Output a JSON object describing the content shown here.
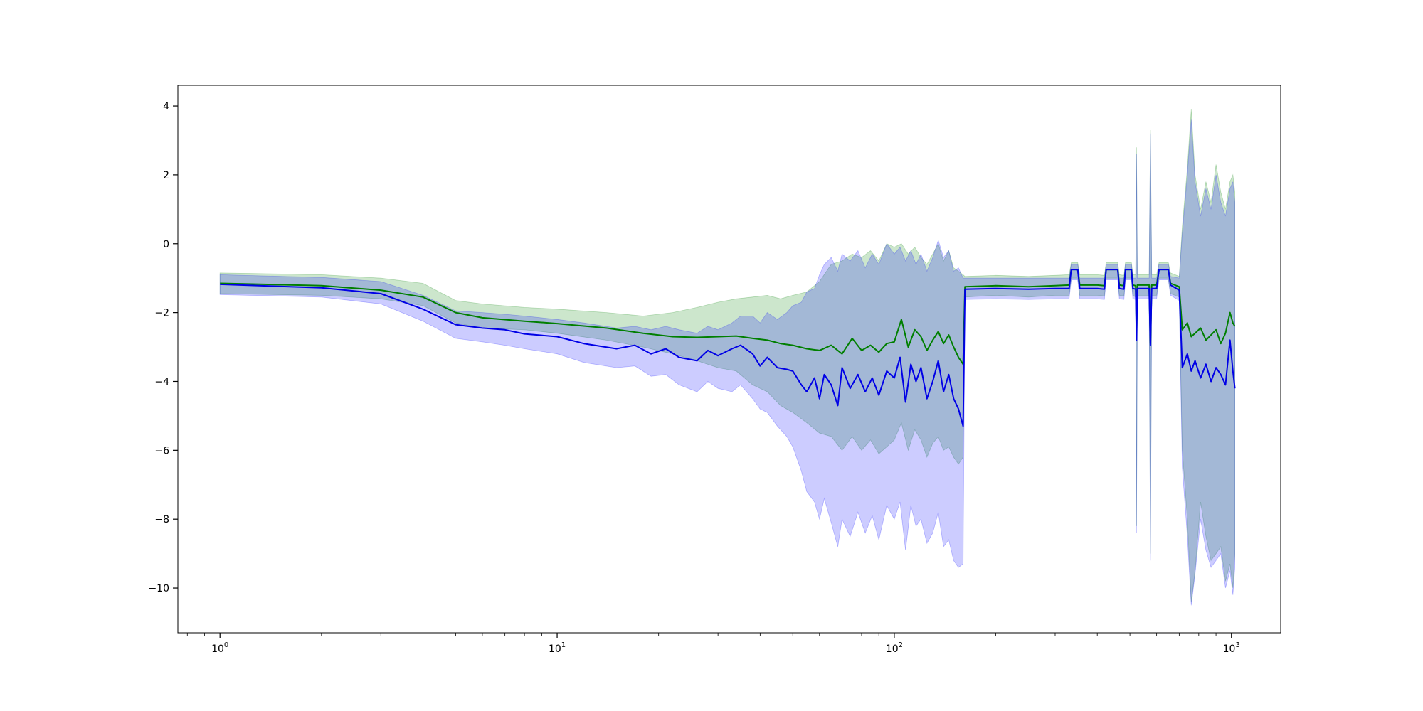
{
  "chart_data": {
    "type": "line",
    "title": "",
    "xlabel": "",
    "ylabel": "",
    "xscale": "log",
    "xlim": [
      0.75,
      1400
    ],
    "ylim": [
      -11.3,
      4.6
    ],
    "grid": false,
    "legend": "none",
    "x_ticks": [
      {
        "value": 1,
        "base": "10",
        "exp": "0"
      },
      {
        "value": 10,
        "base": "10",
        "exp": "1"
      },
      {
        "value": 100,
        "base": "10",
        "exp": "2"
      },
      {
        "value": 1000,
        "base": "10",
        "exp": "3"
      }
    ],
    "y_ticks": [
      {
        "value": 4,
        "label": "4"
      },
      {
        "value": 2,
        "label": "2"
      },
      {
        "value": 0,
        "label": "0"
      },
      {
        "value": -2,
        "label": "−2"
      },
      {
        "value": -4,
        "label": "−4"
      },
      {
        "value": -6,
        "label": "−6"
      },
      {
        "value": -8,
        "label": "−8"
      },
      {
        "value": -10,
        "label": "−10"
      }
    ],
    "series": [
      {
        "color": "#007f00",
        "band_color": "#008000",
        "band_opacity": 0.2,
        "points": [
          [
            1,
            -1.15,
            -0.85,
            -1.45
          ],
          [
            2,
            -1.22,
            -0.9,
            -1.5
          ],
          [
            3,
            -1.35,
            -1.0,
            -1.6
          ],
          [
            4,
            -1.55,
            -1.15,
            -1.8
          ],
          [
            5,
            -2.0,
            -1.65,
            -2.3
          ],
          [
            6,
            -2.15,
            -1.75,
            -2.45
          ],
          [
            8,
            -2.25,
            -1.85,
            -2.5
          ],
          [
            10,
            -2.32,
            -1.9,
            -2.6
          ],
          [
            14,
            -2.45,
            -2.0,
            -2.8
          ],
          [
            18,
            -2.6,
            -2.1,
            -3.0
          ],
          [
            22,
            -2.7,
            -2.0,
            -3.2
          ],
          [
            26,
            -2.72,
            -1.85,
            -3.4
          ],
          [
            30,
            -2.7,
            -1.7,
            -3.6
          ],
          [
            34,
            -2.68,
            -1.6,
            -3.7
          ],
          [
            38,
            -2.75,
            -1.55,
            -4.1
          ],
          [
            42,
            -2.8,
            -1.5,
            -4.3
          ],
          [
            46,
            -2.9,
            -1.6,
            -4.7
          ],
          [
            50,
            -2.95,
            -1.5,
            -4.9
          ],
          [
            55,
            -3.05,
            -1.4,
            -5.2
          ],
          [
            60,
            -3.1,
            -1.1,
            -5.5
          ],
          [
            65,
            -2.95,
            -0.6,
            -5.6
          ],
          [
            70,
            -3.2,
            -0.5,
            -6.0
          ],
          [
            75,
            -2.75,
            -0.3,
            -5.6
          ],
          [
            80,
            -3.1,
            -0.4,
            -6.0
          ],
          [
            85,
            -2.95,
            -0.2,
            -5.7
          ],
          [
            90,
            -3.15,
            -0.5,
            -6.1
          ],
          [
            95,
            -2.9,
            0.0,
            -5.9
          ],
          [
            100,
            -2.85,
            -0.1,
            -5.7
          ],
          [
            105,
            -2.2,
            0.0,
            -5.2
          ],
          [
            110,
            -3.0,
            -0.3,
            -6.0
          ],
          [
            115,
            -2.5,
            -0.1,
            -5.4
          ],
          [
            120,
            -2.7,
            -0.4,
            -5.7
          ],
          [
            125,
            -3.1,
            -0.6,
            -6.2
          ],
          [
            130,
            -2.8,
            -0.3,
            -5.8
          ],
          [
            135,
            -2.55,
            0.0,
            -5.6
          ],
          [
            140,
            -2.9,
            -0.5,
            -6.0
          ],
          [
            145,
            -2.65,
            -0.2,
            -5.9
          ],
          [
            150,
            -3.0,
            -0.7,
            -6.2
          ],
          [
            155,
            -3.3,
            -0.8,
            -6.4
          ],
          [
            160,
            -3.5,
            -0.9,
            -6.2
          ],
          [
            162,
            -1.25,
            -0.95,
            -1.55
          ],
          [
            200,
            -1.22,
            -0.92,
            -1.5
          ],
          [
            250,
            -1.25,
            -0.95,
            -1.55
          ],
          [
            300,
            -1.22,
            -0.92,
            -1.5
          ],
          [
            330,
            -1.2,
            -0.9,
            -1.5
          ],
          [
            335,
            -0.75,
            -0.55,
            -1.0
          ],
          [
            350,
            -0.75,
            -0.55,
            -1.0
          ],
          [
            355,
            -1.2,
            -0.9,
            -1.5
          ],
          [
            400,
            -1.2,
            -0.9,
            -1.5
          ],
          [
            420,
            -1.22,
            -0.92,
            -1.52
          ],
          [
            425,
            -0.75,
            -0.55,
            -1.0
          ],
          [
            460,
            -0.75,
            -0.55,
            -1.0
          ],
          [
            465,
            -1.2,
            -0.9,
            -1.5
          ],
          [
            480,
            -1.22,
            -0.92,
            -1.52
          ],
          [
            485,
            -0.75,
            -0.55,
            -1.0
          ],
          [
            505,
            -0.75,
            -0.55,
            -1.0
          ],
          [
            510,
            -1.2,
            -0.9,
            -1.5
          ],
          [
            520,
            -1.22,
            -0.9,
            -1.55
          ],
          [
            523,
            -2.6,
            2.8,
            -8.2
          ],
          [
            526,
            -1.2,
            -0.9,
            -1.5
          ],
          [
            570,
            -1.2,
            -0.9,
            -1.5
          ],
          [
            575,
            -2.9,
            3.3,
            -9.0
          ],
          [
            580,
            -1.2,
            -0.9,
            -1.5
          ],
          [
            600,
            -1.2,
            -0.9,
            -1.5
          ],
          [
            610,
            -0.75,
            -0.55,
            -1.0
          ],
          [
            650,
            -0.75,
            -0.55,
            -1.0
          ],
          [
            660,
            -1.15,
            -0.85,
            -1.45
          ],
          [
            700,
            -1.25,
            -0.95,
            -1.55
          ],
          [
            715,
            -2.5,
            0.5,
            -6.0
          ],
          [
            740,
            -2.3,
            2.2,
            -8.0
          ],
          [
            760,
            -2.7,
            3.9,
            -10.4
          ],
          [
            780,
            -2.6,
            2.0,
            -9.5
          ],
          [
            810,
            -2.45,
            1.0,
            -7.5
          ],
          [
            840,
            -2.8,
            1.8,
            -8.5
          ],
          [
            870,
            -2.65,
            1.2,
            -9.2
          ],
          [
            900,
            -2.5,
            2.3,
            -9.0
          ],
          [
            930,
            -2.9,
            1.5,
            -8.8
          ],
          [
            960,
            -2.6,
            1.0,
            -9.8
          ],
          [
            990,
            -2.0,
            1.8,
            -9.3
          ],
          [
            1010,
            -2.3,
            2.0,
            -10.0
          ],
          [
            1024,
            -2.4,
            1.5,
            -9.0
          ]
        ]
      },
      {
        "color": "#0000e6",
        "band_color": "#0000ff",
        "band_opacity": 0.2,
        "points": [
          [
            1,
            -1.18,
            -0.9,
            -1.48
          ],
          [
            2,
            -1.28,
            -0.98,
            -1.55
          ],
          [
            3,
            -1.45,
            -1.1,
            -1.75
          ],
          [
            4,
            -1.9,
            -1.5,
            -2.25
          ],
          [
            5,
            -2.35,
            -1.95,
            -2.75
          ],
          [
            6,
            -2.45,
            -2.0,
            -2.85
          ],
          [
            7,
            -2.5,
            -2.05,
            -2.95
          ],
          [
            8,
            -2.62,
            -2.1,
            -3.05
          ],
          [
            10,
            -2.7,
            -2.2,
            -3.2
          ],
          [
            12,
            -2.9,
            -2.3,
            -3.45
          ],
          [
            15,
            -3.05,
            -2.45,
            -3.6
          ],
          [
            17,
            -2.95,
            -2.4,
            -3.55
          ],
          [
            19,
            -3.2,
            -2.5,
            -3.85
          ],
          [
            21,
            -3.05,
            -2.4,
            -3.8
          ],
          [
            23,
            -3.3,
            -2.5,
            -4.1
          ],
          [
            26,
            -3.4,
            -2.6,
            -4.3
          ],
          [
            28,
            -3.1,
            -2.4,
            -4.0
          ],
          [
            30,
            -3.25,
            -2.5,
            -4.2
          ],
          [
            33,
            -3.05,
            -2.3,
            -4.3
          ],
          [
            35,
            -2.95,
            -2.1,
            -4.1
          ],
          [
            38,
            -3.2,
            -2.1,
            -4.5
          ],
          [
            40,
            -3.55,
            -2.3,
            -4.8
          ],
          [
            42,
            -3.3,
            -2.0,
            -4.9
          ],
          [
            45,
            -3.6,
            -2.2,
            -5.3
          ],
          [
            48,
            -3.65,
            -2.0,
            -5.6
          ],
          [
            50,
            -3.7,
            -1.8,
            -5.9
          ],
          [
            53,
            -4.1,
            -1.7,
            -6.6
          ],
          [
            55,
            -4.3,
            -1.4,
            -7.2
          ],
          [
            58,
            -3.9,
            -1.3,
            -7.5
          ],
          [
            60,
            -4.5,
            -0.9,
            -8.0
          ],
          [
            62,
            -3.8,
            -0.6,
            -7.4
          ],
          [
            65,
            -4.1,
            -0.4,
            -8.1
          ],
          [
            68,
            -4.7,
            -0.8,
            -8.8
          ],
          [
            70,
            -3.6,
            -0.3,
            -8.0
          ],
          [
            74,
            -4.2,
            -0.5,
            -8.5
          ],
          [
            78,
            -3.8,
            -0.2,
            -7.8
          ],
          [
            82,
            -4.3,
            -0.7,
            -8.4
          ],
          [
            86,
            -3.9,
            -0.3,
            -7.9
          ],
          [
            90,
            -4.4,
            -0.6,
            -8.6
          ],
          [
            95,
            -3.7,
            0.0,
            -7.6
          ],
          [
            100,
            -3.9,
            -0.3,
            -8.0
          ],
          [
            104,
            -3.3,
            -0.1,
            -7.5
          ],
          [
            108,
            -4.6,
            -0.5,
            -8.9
          ],
          [
            112,
            -3.5,
            -0.2,
            -7.6
          ],
          [
            116,
            -4.0,
            -0.6,
            -8.2
          ],
          [
            120,
            -3.6,
            -0.3,
            -8.0
          ],
          [
            125,
            -4.5,
            -0.8,
            -8.7
          ],
          [
            130,
            -4.0,
            -0.4,
            -8.4
          ],
          [
            135,
            -3.4,
            0.1,
            -7.8
          ],
          [
            140,
            -4.3,
            -0.4,
            -8.8
          ],
          [
            145,
            -3.8,
            -0.2,
            -8.6
          ],
          [
            150,
            -4.5,
            -0.8,
            -9.2
          ],
          [
            155,
            -4.8,
            -0.7,
            -9.4
          ],
          [
            160,
            -5.3,
            -1.0,
            -9.3
          ],
          [
            162,
            -1.32,
            -1.0,
            -1.62
          ],
          [
            200,
            -1.3,
            -1.0,
            -1.6
          ],
          [
            250,
            -1.32,
            -1.0,
            -1.62
          ],
          [
            300,
            -1.3,
            -1.0,
            -1.6
          ],
          [
            330,
            -1.3,
            -1.0,
            -1.6
          ],
          [
            335,
            -0.75,
            -0.6,
            -1.05
          ],
          [
            350,
            -0.75,
            -0.6,
            -1.05
          ],
          [
            355,
            -1.3,
            -1.0,
            -1.6
          ],
          [
            400,
            -1.3,
            -1.0,
            -1.6
          ],
          [
            420,
            -1.32,
            -1.0,
            -1.62
          ],
          [
            425,
            -0.75,
            -0.6,
            -1.05
          ],
          [
            460,
            -0.75,
            -0.6,
            -1.05
          ],
          [
            465,
            -1.3,
            -1.0,
            -1.6
          ],
          [
            480,
            -1.32,
            -1.0,
            -1.62
          ],
          [
            485,
            -0.75,
            -0.6,
            -1.05
          ],
          [
            505,
            -0.75,
            -0.6,
            -1.05
          ],
          [
            510,
            -1.3,
            -1.0,
            -1.6
          ],
          [
            520,
            -1.32,
            -1.0,
            -1.62
          ],
          [
            523,
            -2.8,
            2.6,
            -8.4
          ],
          [
            526,
            -1.3,
            -1.0,
            -1.6
          ],
          [
            570,
            -1.3,
            -1.0,
            -1.6
          ],
          [
            575,
            -2.95,
            3.2,
            -9.2
          ],
          [
            580,
            -1.3,
            -1.0,
            -1.6
          ],
          [
            600,
            -1.3,
            -1.0,
            -1.6
          ],
          [
            610,
            -0.75,
            -0.6,
            -1.05
          ],
          [
            650,
            -0.75,
            -0.6,
            -1.05
          ],
          [
            660,
            -1.2,
            -0.95,
            -1.5
          ],
          [
            700,
            -1.35,
            -1.0,
            -1.65
          ],
          [
            715,
            -3.6,
            0.3,
            -6.5
          ],
          [
            740,
            -3.2,
            2.0,
            -8.5
          ],
          [
            760,
            -3.7,
            3.6,
            -10.5
          ],
          [
            780,
            -3.4,
            1.8,
            -9.6
          ],
          [
            810,
            -3.9,
            0.8,
            -8.0
          ],
          [
            840,
            -3.5,
            1.6,
            -8.9
          ],
          [
            870,
            -4.0,
            1.0,
            -9.4
          ],
          [
            900,
            -3.6,
            2.0,
            -9.2
          ],
          [
            930,
            -3.8,
            1.2,
            -9.0
          ],
          [
            960,
            -4.1,
            0.8,
            -10.0
          ],
          [
            990,
            -2.8,
            1.6,
            -9.5
          ],
          [
            1010,
            -3.7,
            1.8,
            -10.2
          ],
          [
            1024,
            -4.2,
            1.2,
            -9.4
          ]
        ]
      }
    ]
  }
}
